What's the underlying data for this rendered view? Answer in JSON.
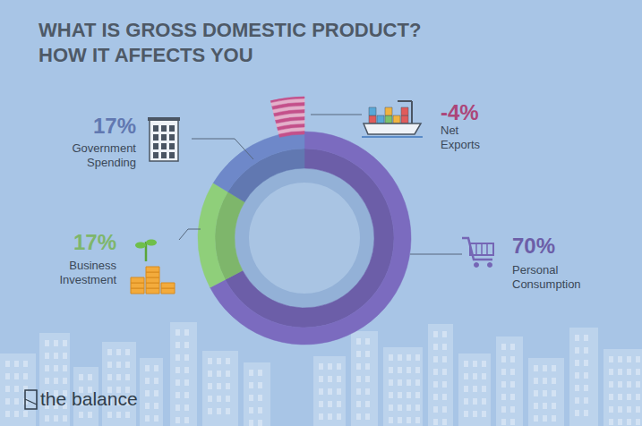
{
  "chart_data": {
    "type": "pie",
    "title": "WHAT IS GROSS DOMESTIC PRODUCT? HOW IT AFFECTS YOU",
    "categories": [
      "Personal Consumption",
      "Business Investment",
      "Government Spending",
      "Net Exports"
    ],
    "values": [
      70,
      17,
      17,
      -4
    ],
    "value_labels": [
      "70%",
      "17%",
      "17%",
      "-4%"
    ],
    "colors": [
      "#7b6bbf",
      "#8fcf7a",
      "#6e88c9",
      "#c4508a"
    ],
    "data_labels": true,
    "annotations": [
      "the balance"
    ]
  }
}
